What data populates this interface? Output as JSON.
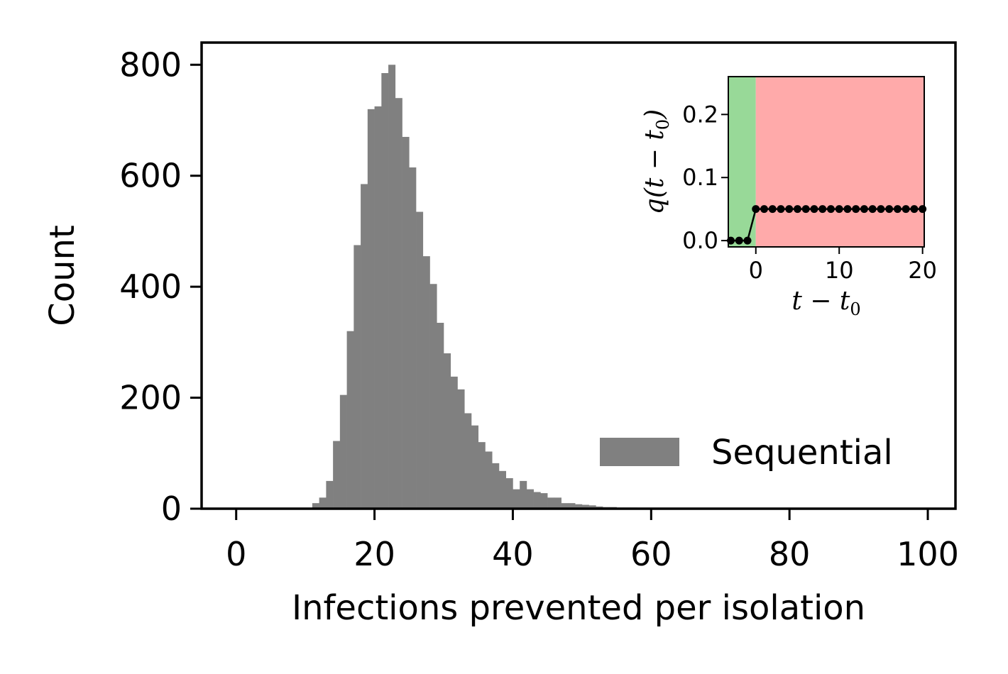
{
  "chart_data": [
    {
      "type": "bar",
      "title": "",
      "xlabel": "Infections prevented per isolation",
      "ylabel": "Count",
      "xlim": [
        -5,
        104
      ],
      "ylim": [
        0,
        840
      ],
      "xticks": [
        0,
        20,
        40,
        60,
        80,
        100
      ],
      "yticks": [
        0,
        200,
        400,
        600,
        800
      ],
      "bar_color": "#808080",
      "bin_width": 1,
      "bin_start": 11,
      "values": [
        10,
        20,
        50,
        122,
        205,
        320,
        475,
        585,
        720,
        725,
        785,
        800,
        740,
        670,
        615,
        535,
        455,
        405,
        335,
        280,
        238,
        215,
        172,
        150,
        120,
        103,
        82,
        68,
        55,
        35,
        50,
        35,
        30,
        28,
        20,
        20,
        10,
        10,
        8,
        7,
        6,
        4,
        3,
        3,
        2,
        2,
        2,
        1,
        1,
        1
      ],
      "legend": {
        "entries": [
          "Sequential"
        ],
        "position": "lower-right"
      }
    },
    {
      "type": "line",
      "title": "",
      "xlabel": "t − t",
      "xlabel_sub": "0",
      "ylabel": "q(t − t",
      "ylabel_sub": "0",
      "ylabel_close": ")",
      "xlim": [
        -3.3,
        20.2
      ],
      "ylim": [
        -0.01,
        0.26
      ],
      "xticks": [
        0,
        10,
        20
      ],
      "yticks": [
        0.0,
        0.1,
        0.2
      ],
      "ytick_labels": [
        "0.0",
        "0.1",
        "0.2"
      ],
      "regions": [
        {
          "x0": -3.3,
          "x1": 0,
          "color": "#98d998"
        },
        {
          "x0": 0,
          "x1": 20.2,
          "color": "#ffaaaa"
        }
      ],
      "x": [
        -3,
        -2,
        -1,
        0,
        1,
        2,
        3,
        4,
        5,
        6,
        7,
        8,
        9,
        10,
        11,
        12,
        13,
        14,
        15,
        16,
        17,
        18,
        19,
        20
      ],
      "y": [
        0,
        0,
        0,
        0.05,
        0.05,
        0.05,
        0.05,
        0.05,
        0.05,
        0.05,
        0.05,
        0.05,
        0.05,
        0.05,
        0.05,
        0.05,
        0.05,
        0.05,
        0.05,
        0.05,
        0.05,
        0.05,
        0.05,
        0.05
      ]
    }
  ]
}
